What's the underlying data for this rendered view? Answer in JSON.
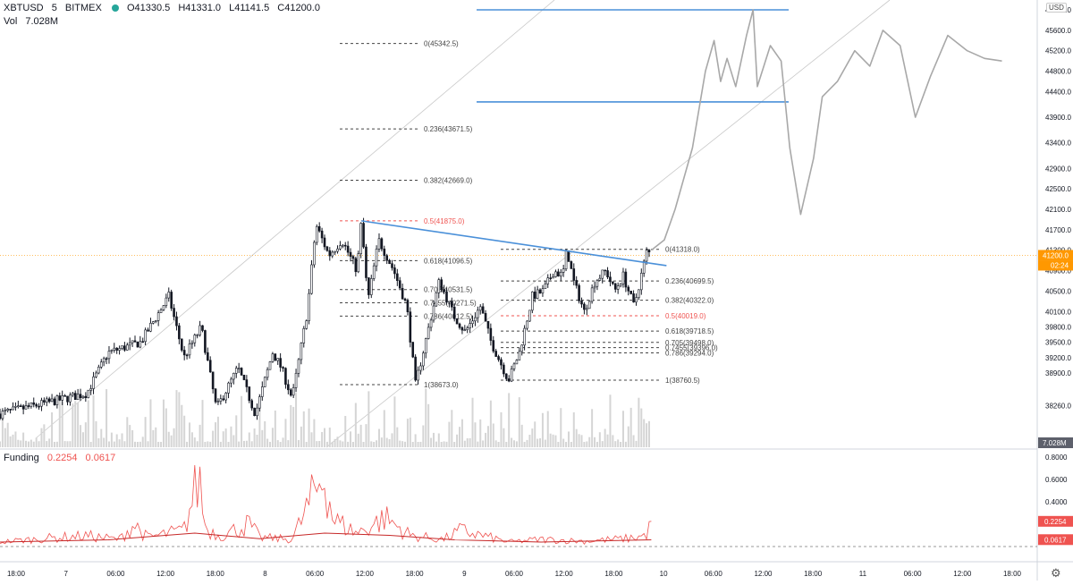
{
  "header": {
    "symbol": "XBTUSD",
    "interval": "5",
    "exchange": "BITMEX",
    "open": "O41330.5",
    "high": "H41331.0",
    "low": "L41141.5",
    "close": "C41200.0",
    "vol_label": "Vol",
    "vol_value": "7.028M",
    "currency": "USD"
  },
  "colors": {
    "up": "#26a69a",
    "price_line": "#ff9800",
    "trendline": "#2962ff",
    "fib_orange": "#ef5350",
    "funding": "#ef5350",
    "funding_ma": "#c62828",
    "axis_badge": "#5d606b"
  },
  "icons": {
    "settings": "gear-icon"
  },
  "chart_data": [
    {
      "type": "candlestick",
      "title": "",
      "y_axis_ticks": [
        46000.0,
        45600.0,
        45200.0,
        44800.0,
        44400.0,
        43900.0,
        43400.0,
        42900.0,
        42500.0,
        42100.0,
        41700.0,
        41300.0,
        40900.0,
        40500.0,
        40100.0,
        39800.0,
        39500.0,
        39200.0,
        38900.0,
        38260.0
      ],
      "y_range": [
        37900,
        46100
      ],
      "current_price": "41200.0",
      "countdown": "02:24",
      "x_axis_ticks": [
        "18:00",
        "7",
        "06:00",
        "12:00",
        "18:00",
        "8",
        "06:00",
        "12:00",
        "18:00",
        "9",
        "06:00",
        "12:00",
        "18:00",
        "10",
        "06:00",
        "12:00",
        "18:00",
        "11",
        "06:00",
        "12:00",
        "18:00"
      ],
      "price_key_points": [
        [
          0,
          38100
        ],
        [
          4,
          38500
        ],
        [
          5,
          39300
        ],
        [
          6.5,
          39500
        ],
        [
          7.8,
          40400
        ],
        [
          8.5,
          39200
        ],
        [
          9.3,
          39800
        ],
        [
          10,
          38200
        ],
        [
          11,
          39000
        ],
        [
          11.8,
          38100
        ],
        [
          12.6,
          39300
        ],
        [
          13,
          39000
        ],
        [
          13.5,
          38400
        ],
        [
          14.2,
          40100
        ],
        [
          14.6,
          41800
        ],
        [
          15.2,
          41200
        ],
        [
          15.8,
          41500
        ],
        [
          16.5,
          40900
        ],
        [
          16.7,
          41875
        ],
        [
          17,
          40300
        ],
        [
          17.5,
          41500
        ],
        [
          18.2,
          40900
        ],
        [
          18.8,
          40200
        ],
        [
          19.2,
          38673
        ],
        [
          19.6,
          39400
        ],
        [
          20.3,
          40700
        ],
        [
          21,
          40000
        ],
        [
          21.5,
          39700
        ],
        [
          22.2,
          40200
        ],
        [
          22.7,
          39500
        ],
        [
          23.5,
          38760
        ],
        [
          24,
          39300
        ],
        [
          24.6,
          40400
        ],
        [
          25.1,
          40500
        ],
        [
          25.6,
          40900
        ],
        [
          26,
          40800
        ],
        [
          26.2,
          41318
        ],
        [
          26.5,
          40700
        ],
        [
          27,
          40100
        ],
        [
          27.5,
          40700
        ],
        [
          28,
          40900
        ],
        [
          28.4,
          40500
        ],
        [
          28.8,
          40800
        ],
        [
          29.3,
          40200
        ],
        [
          29.9,
          41300
        ],
        [
          30.1,
          41200
        ]
      ],
      "projection_key_points": [
        [
          30.1,
          41300
        ],
        [
          30.7,
          41500
        ],
        [
          31.2,
          42100
        ],
        [
          32,
          43300
        ],
        [
          32.6,
          44800
        ],
        [
          33,
          45400
        ],
        [
          33.3,
          44600
        ],
        [
          33.6,
          45050
        ],
        [
          34,
          44500
        ],
        [
          34.5,
          45500
        ],
        [
          34.8,
          46000
        ],
        [
          35,
          44500
        ],
        [
          35.6,
          45300
        ],
        [
          36.1,
          45000
        ],
        [
          36.5,
          43300
        ],
        [
          37,
          42000
        ],
        [
          37.6,
          43100
        ],
        [
          38,
          44300
        ],
        [
          38.7,
          44600
        ],
        [
          39.5,
          45200
        ],
        [
          40.2,
          44900
        ],
        [
          40.8,
          45600
        ],
        [
          41.6,
          45300
        ],
        [
          42.3,
          43900
        ],
        [
          43,
          44700
        ],
        [
          43.8,
          45500
        ],
        [
          44.7,
          45200
        ],
        [
          45.5,
          45050
        ],
        [
          46.3,
          45000
        ]
      ],
      "x_span": [
        0,
        48.3
      ],
      "fib_left": [
        {
          "label": "0(45342.5)",
          "price": 45342.5,
          "color": "dark"
        },
        {
          "label": "0.236(43671.5)",
          "price": 43671.5,
          "color": "dark"
        },
        {
          "label": "0.382(42669.0)",
          "price": 42669.0,
          "color": "dark"
        },
        {
          "label": "0.5(41875.0)",
          "price": 41875.0,
          "color": "orange"
        },
        {
          "label": "0.618(41096.5)",
          "price": 41096.5,
          "color": "dark"
        },
        {
          "label": "0.705(40531.5)",
          "price": 40531.5,
          "color": "dark"
        },
        {
          "label": "0.7455(40271.5)",
          "price": 40271.5,
          "color": "dark"
        },
        {
          "label": "0.786(40012.5)",
          "price": 40012.5,
          "color": "dark"
        },
        {
          "label": "1(38673.0)",
          "price": 38673.0,
          "color": "dark"
        }
      ],
      "fib_right": [
        {
          "label": "0(41318.0)",
          "price": 41318.0,
          "color": "dark"
        },
        {
          "label": "0.236(40699.5)",
          "price": 40699.5,
          "color": "dark"
        },
        {
          "label": "0.382(40322.0)",
          "price": 40322.0,
          "color": "dark"
        },
        {
          "label": "0.5(40019.0)",
          "price": 40019.0,
          "color": "orange"
        },
        {
          "label": "0.618(39718.5)",
          "price": 39718.5,
          "color": "dark"
        },
        {
          "label": "0.705(39498.0)",
          "price": 39498.0,
          "color": "dark"
        },
        {
          "label": "0.7455(39396.0)",
          "price": 39396.0,
          "color": "dark"
        },
        {
          "label": "0.786(39294.0)",
          "price": 39294.0,
          "color": "dark"
        },
        {
          "label": "1(38760.5)",
          "price": 38760.5,
          "color": "dark"
        }
      ],
      "horizontal_levels": [
        46000.0,
        44200.0
      ],
      "trendline": [
        [
          16.7,
          41875
        ],
        [
          30.8,
          41000
        ]
      ],
      "volume_value": "7.028M"
    },
    {
      "type": "line",
      "title": "Funding",
      "values_label": [
        "0.2254",
        "0.0617"
      ],
      "y_axis_ticks": [
        "0.8000",
        "0.6000",
        "0.4000"
      ],
      "y_range": [
        -0.05,
        0.85
      ],
      "current_values": [
        "0.2254",
        "0.0617"
      ],
      "zero_line": 0.0,
      "funding_key_points": [
        [
          0,
          0.05
        ],
        [
          2,
          0.09
        ],
        [
          4,
          0.12
        ],
        [
          5.5,
          0.08
        ],
        [
          6.2,
          0.25
        ],
        [
          6.8,
          0.1
        ],
        [
          8.5,
          0.18
        ],
        [
          9.2,
          0.78
        ],
        [
          9.5,
          0.2
        ],
        [
          10.2,
          0.12
        ],
        [
          11.5,
          0.25
        ],
        [
          12,
          0.1
        ],
        [
          13.5,
          0.08
        ],
        [
          15,
          0.82
        ],
        [
          15.4,
          0.3
        ],
        [
          16.5,
          0.15
        ],
        [
          17.8,
          0.32
        ],
        [
          19,
          0.12
        ],
        [
          20.5,
          0.08
        ],
        [
          21.3,
          0.18
        ],
        [
          23.5,
          0.05
        ],
        [
          25,
          0.08
        ],
        [
          27,
          0.06
        ],
        [
          29,
          0.09
        ],
        [
          29.8,
          0.12
        ],
        [
          30.1,
          0.23
        ]
      ],
      "ma_key_points": [
        [
          0,
          0.04
        ],
        [
          5,
          0.06
        ],
        [
          9,
          0.12
        ],
        [
          12,
          0.07
        ],
        [
          15,
          0.12
        ],
        [
          18,
          0.1
        ],
        [
          21,
          0.06
        ],
        [
          25,
          0.04
        ],
        [
          30.1,
          0.06
        ]
      ]
    }
  ]
}
